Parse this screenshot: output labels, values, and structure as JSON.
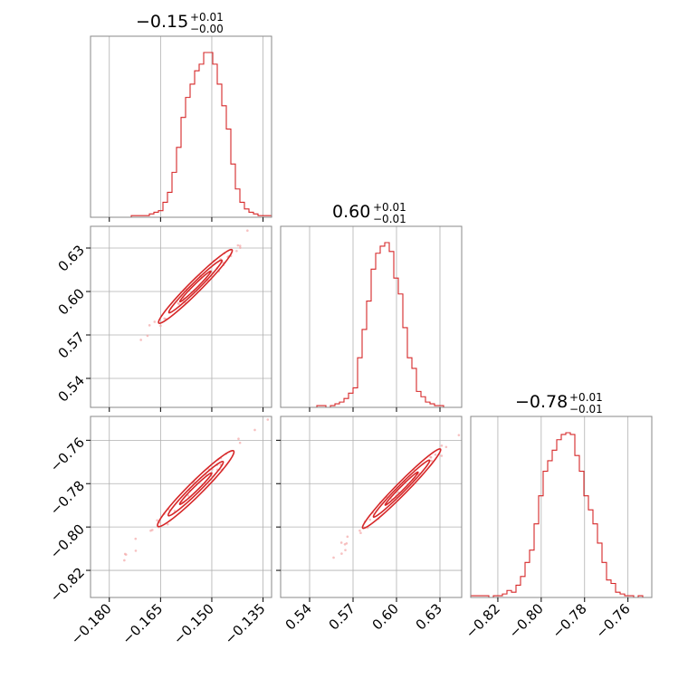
{
  "chart_data": {
    "type": "corner",
    "color": "#d62728",
    "grid": true,
    "params": [
      {
        "axis_range": [
          -0.1855,
          -0.1325
        ],
        "ticks": [
          -0.18,
          -0.165,
          -0.15,
          -0.135
        ],
        "tick_labels": [
          "−0.180",
          "−0.165",
          "−0.150",
          "−0.135"
        ],
        "median": -0.155,
        "title_main": "−0.15",
        "title_plus": "+0.01",
        "title_minus": "−0.00"
      },
      {
        "axis_range": [
          0.52,
          0.645
        ],
        "ticks": [
          0.54,
          0.57,
          0.6,
          0.63
        ],
        "tick_labels": [
          "0.54",
          "0.57",
          "0.60",
          "0.63"
        ],
        "median": 0.603,
        "title_main": "0.60",
        "title_plus": "+0.01",
        "title_minus": "−0.01"
      },
      {
        "axis_range": [
          -0.8325,
          -0.749
        ],
        "ticks": [
          -0.82,
          -0.8,
          -0.78,
          -0.76
        ],
        "tick_labels": [
          "−0.82",
          "−0.80",
          "−0.78",
          "−0.76"
        ],
        "median": -0.781,
        "title_main": "−0.78",
        "title_plus": "+0.01",
        "title_minus": "−0.01"
      }
    ],
    "histograms": [
      {
        "param": 0,
        "bin_start": -0.1855,
        "bin_width": 0.001325,
        "counts": [
          0,
          0,
          0,
          0,
          0,
          0,
          0,
          0,
          0,
          1,
          1,
          1,
          1,
          2,
          3,
          4,
          9,
          15,
          27,
          42,
          60,
          72,
          80,
          88,
          92,
          99,
          99,
          92,
          80,
          67,
          53,
          32,
          17,
          9,
          5,
          3,
          2,
          1,
          1,
          1
        ]
      },
      {
        "param": 1,
        "bin_start": 0.52,
        "bin_width": 0.003125,
        "counts": [
          0,
          0,
          0,
          0,
          0,
          0,
          0,
          0,
          1,
          1,
          0,
          1,
          2,
          3,
          5,
          8,
          11,
          28,
          44,
          60,
          78,
          87,
          91,
          93,
          88,
          73,
          64,
          45,
          28,
          22,
          9,
          6,
          3,
          2,
          1,
          1,
          0,
          0,
          0,
          0
        ]
      },
      {
        "param": 2,
        "bin_start": -0.8325,
        "bin_width": 0.0020875,
        "counts": [
          1,
          1,
          1,
          1,
          0,
          1,
          1,
          2,
          4,
          3,
          7,
          12,
          20,
          27,
          42,
          58,
          72,
          78,
          84,
          90,
          93,
          94,
          93,
          81,
          72,
          58,
          50,
          42,
          31,
          20,
          10,
          8,
          3,
          2,
          1,
          1,
          0,
          1,
          0,
          0
        ]
      }
    ],
    "pairs": [
      {
        "x_param": 0,
        "y_param": 1,
        "center": [
          -0.1548,
          0.6035
        ],
        "slope": 2.295,
        "half_length": 0.0108,
        "level_widths": [
          0.0018,
          0.0036,
          0.0058
        ]
      },
      {
        "x_param": 0,
        "y_param": 2,
        "center": [
          -0.1547,
          -0.7823
        ],
        "slope": 1.513,
        "half_length": 0.0112,
        "level_widths": [
          0.0014,
          0.0028,
          0.0045
        ]
      },
      {
        "x_param": 1,
        "y_param": 2,
        "center": [
          0.6035,
          -0.7823
        ],
        "slope": 0.664,
        "half_length": 0.027,
        "level_widths": [
          0.0012,
          0.0024,
          0.0038
        ]
      }
    ]
  }
}
